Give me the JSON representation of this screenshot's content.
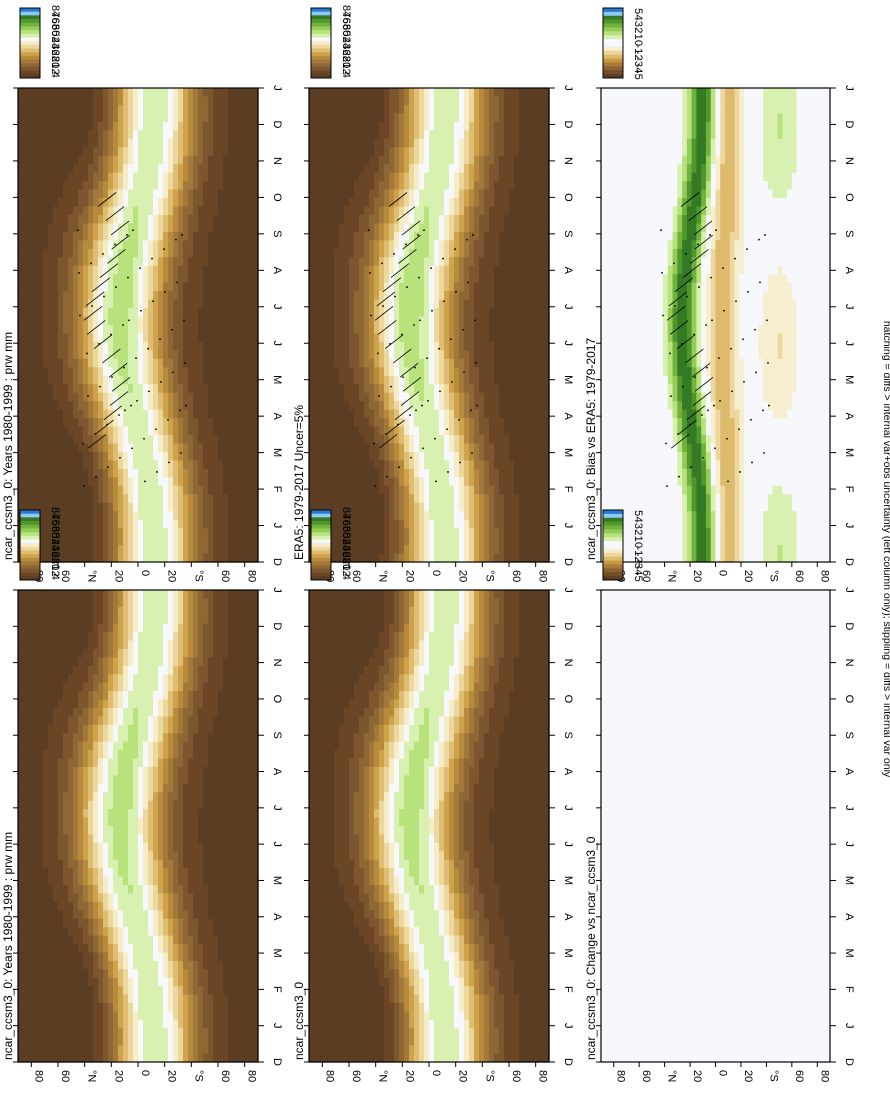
{
  "footer_note": "hatching = diffs > internal var+obs uncertainty (left column only); stippling = diffs > internal var only",
  "colors": {
    "prw_scale": [
      "#5a3d22",
      "#6b4626",
      "#7d5630",
      "#8f6735",
      "#a2793b",
      "#b88a3c",
      "#cfa24c",
      "#dfbd73",
      "#ecd79d",
      "#f6ecc8",
      "#f7f8fc",
      "#d8f0b0",
      "#b8e27c",
      "#94cc58",
      "#70b23c",
      "#4f962c",
      "#347a24",
      "#8ec8f4",
      "#2a7bd0"
    ],
    "diff_scale": [
      "#5a3d22",
      "#734e2a",
      "#8c6132",
      "#a87a3c",
      "#c7993f",
      "#ddba6c",
      "#edd79f",
      "#f7eed0",
      "#f7f8fc",
      "#f7f8fc",
      "#d8f0b0",
      "#b8e27c",
      "#94cc58",
      "#70b23c",
      "#4f962c",
      "#347a24",
      "#8ec8f4",
      "#2a7bd0"
    ],
    "blank_field": "#f7f8fc"
  },
  "common_axes": {
    "month_ticks": [
      "D",
      "J",
      "F",
      "M",
      "A",
      "M",
      "J",
      "J",
      "A",
      "S",
      "O",
      "N",
      "D",
      "J"
    ],
    "lat_ticks": [
      "80",
      "60",
      "°N",
      "20",
      "0",
      "20",
      "°S",
      "60",
      "80"
    ]
  },
  "chart_data": [
    {
      "type": "heatmap",
      "panel": "top-left",
      "title": "ncar_ccsm3_0: Years 1980-1999 : prw mm",
      "colorbar_labels": [
        "84",
        "76",
        "68",
        "60",
        "52",
        "44",
        "36",
        "28",
        "20",
        "12",
        "4"
      ],
      "xlabel": "",
      "ylabel": "",
      "field": "prw_model",
      "hatching": true,
      "stippling": true
    },
    {
      "type": "heatmap",
      "panel": "top-right",
      "title": "ncar_ccsm3_0: Years 1980-1999 : prw mm",
      "colorbar_labels": [
        "84",
        "76",
        "68",
        "60",
        "52",
        "44",
        "36",
        "28",
        "20",
        "12",
        "4"
      ],
      "field": "prw_model",
      "hatching": false,
      "stippling": false
    },
    {
      "type": "heatmap",
      "panel": "middle-left",
      "title": "ERA5: 1979-2017 Uncer=5%",
      "colorbar_labels": [
        "84",
        "76",
        "68",
        "60",
        "52",
        "44",
        "36",
        "28",
        "20",
        "12",
        "4"
      ],
      "field": "prw_obs",
      "hatching": true,
      "stippling": true
    },
    {
      "type": "heatmap",
      "panel": "middle-right",
      "title": "ncar_ccsm3_0",
      "colorbar_labels": [
        "84",
        "76",
        "68",
        "60",
        "52",
        "44",
        "36",
        "28",
        "20",
        "12",
        "4"
      ],
      "field": "prw_model",
      "hatching": false,
      "stippling": false
    },
    {
      "type": "heatmap",
      "panel": "bottom-left",
      "title": "ncar_ccsm3_0: Bias vs ERA5: 1979-2017",
      "colorbar_labels": [
        "5",
        "4",
        "3",
        "2",
        "1",
        "0",
        "-1",
        "-2",
        "-3",
        "-4",
        "-5"
      ],
      "field": "bias",
      "hatching": true,
      "stippling": true
    },
    {
      "type": "heatmap",
      "panel": "bottom-right",
      "title": "ncar_ccsm3_0: Change vs ncar_ccsm3_0",
      "colorbar_labels": [
        "5",
        "4",
        "3",
        "2",
        "1",
        "0",
        "-1",
        "-2",
        "-3",
        "-4",
        "-5"
      ],
      "field": "blank",
      "hatching": false,
      "stippling": false
    }
  ]
}
